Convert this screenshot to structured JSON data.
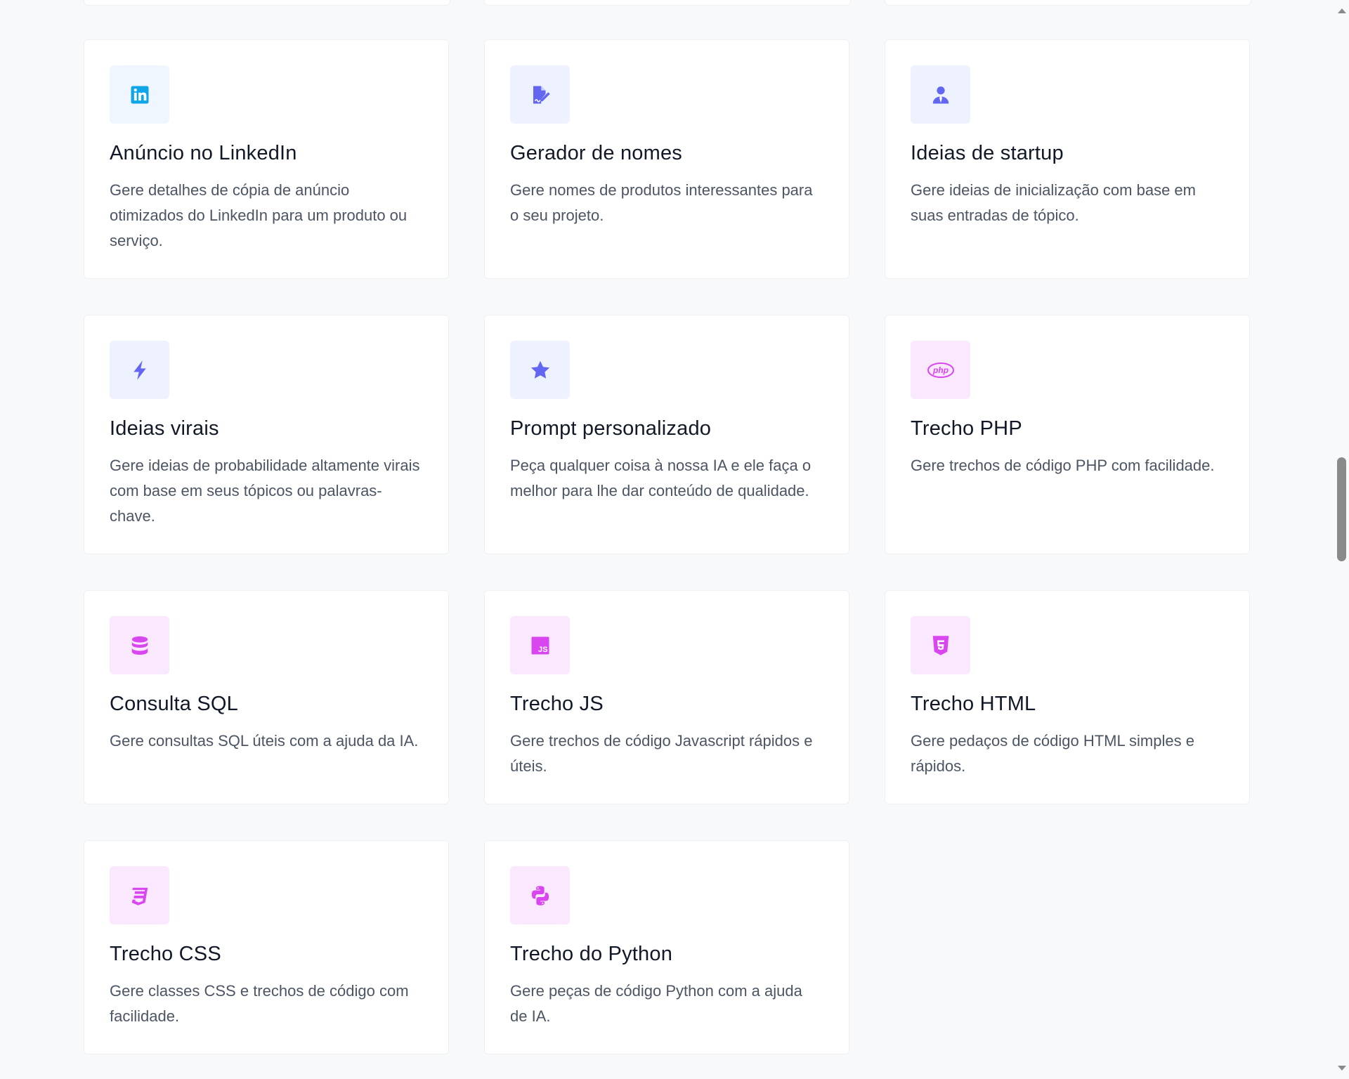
{
  "colors": {
    "blue_bg": "#eff6ff",
    "blue_fg": "#0ea5e9",
    "indigo_bg": "#eef2ff",
    "indigo_fg": "#6366f1",
    "fuchsia_bg": "#fae8ff",
    "fuchsia_fg": "#d946ef"
  },
  "cards": [
    {
      "icon": "linkedin-icon",
      "title": "Anúncio no LinkedIn",
      "description": "Gere detalhes de cópia de anúncio otimizados do LinkedIn para um produto ou serviço."
    },
    {
      "icon": "file-signature-icon",
      "title": "Gerador de nomes",
      "description": "Gere nomes de produtos interessantes para o seu projeto."
    },
    {
      "icon": "user-tie-icon",
      "title": "Ideias de startup",
      "description": "Gere ideias de inicialização com base em suas entradas de tópico."
    },
    {
      "icon": "bolt-icon",
      "title": "Ideias virais",
      "description": "Gere ideias de probabilidade altamente virais com base em seus tópicos ou palavras-chave."
    },
    {
      "icon": "star-icon",
      "title": "Prompt personalizado",
      "description": "Peça qualquer coisa à nossa IA e ele faça o melhor para lhe dar conteúdo de qualidade."
    },
    {
      "icon": "php-icon",
      "title": "Trecho PHP",
      "description": "Gere trechos de código PHP com facilidade.",
      "icon_text": "php"
    },
    {
      "icon": "database-icon",
      "title": "Consulta SQL",
      "description": "Gere consultas SQL úteis com a ajuda da IA."
    },
    {
      "icon": "js-icon",
      "title": "Trecho JS",
      "description": "Gere trechos de código Javascript rápidos e úteis.",
      "icon_text": "JS"
    },
    {
      "icon": "html5-icon",
      "title": "Trecho HTML",
      "description": "Gere pedaços de código HTML simples e rápidos."
    },
    {
      "icon": "css3-icon",
      "title": "Trecho CSS",
      "description": "Gere classes CSS e trechos de código com facilidade."
    },
    {
      "icon": "python-icon",
      "title": "Trecho do Python",
      "description": "Gere peças de código Python com a ajuda de IA."
    }
  ]
}
